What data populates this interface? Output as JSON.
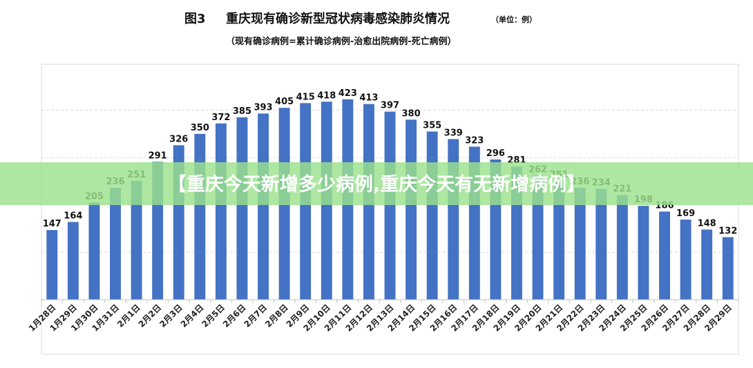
{
  "chart_data": {
    "type": "bar",
    "figure_label": "图3",
    "title": "重庆现有确诊新型冠状病毒感染肺炎情况",
    "unit": "（单位：例）",
    "subtitle": "（现有确诊病例=累计确诊病例-治愈出院病例-死亡病例）",
    "categories": [
      "1月28日",
      "1月29日",
      "1月30日",
      "1月31日",
      "2月1日",
      "2月2日",
      "2月3日",
      "2月4日",
      "2月5日",
      "2月6日",
      "2月7日",
      "2月8日",
      "2月9日",
      "2月10日",
      "2月11日",
      "2月12日",
      "2月13日",
      "2月14日",
      "2月15日",
      "2月16日",
      "2月17日",
      "2月18日",
      "2月19日",
      "2月20日",
      "2月21日",
      "2月22日",
      "2月23日",
      "2月24日",
      "2月25日",
      "2月26日",
      "2月27日",
      "2月28日",
      "2月29日"
    ],
    "values": [
      147,
      164,
      205,
      236,
      251,
      291,
      326,
      350,
      372,
      385,
      393,
      405,
      415,
      418,
      423,
      413,
      397,
      380,
      355,
      339,
      323,
      296,
      281,
      262,
      251,
      236,
      234,
      221,
      198,
      186,
      169,
      148,
      132
    ],
    "xlabel": "",
    "ylabel": "",
    "ylim": [
      0,
      500
    ],
    "grid": true,
    "bar_color": "#4472c4"
  },
  "banner": {
    "text": "【重庆今天新增多少病例,重庆今天有无新增病例】"
  }
}
